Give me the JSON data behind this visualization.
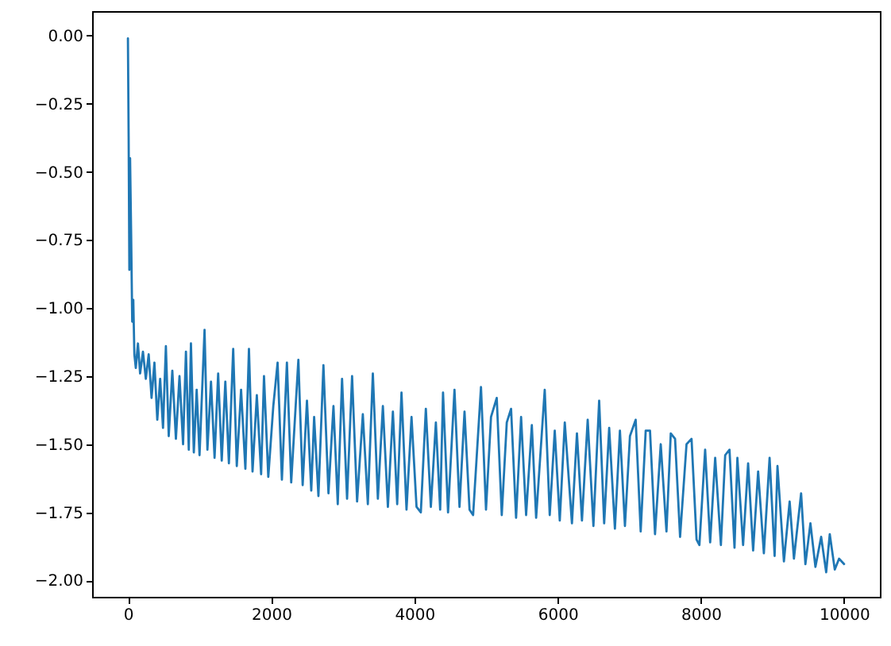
{
  "chart_data": {
    "type": "line",
    "color": "#1f77b4",
    "x": [
      0,
      10,
      20,
      30,
      45,
      60,
      75,
      90,
      110,
      140,
      170,
      210,
      250,
      290,
      330,
      370,
      410,
      450,
      490,
      530,
      570,
      620,
      670,
      720,
      770,
      810,
      850,
      880,
      920,
      960,
      1000,
      1070,
      1110,
      1160,
      1210,
      1260,
      1310,
      1360,
      1410,
      1470,
      1520,
      1580,
      1640,
      1690,
      1740,
      1800,
      1860,
      1900,
      1960,
      2030,
      2090,
      2150,
      2220,
      2280,
      2380,
      2440,
      2500,
      2560,
      2600,
      2660,
      2730,
      2800,
      2870,
      2930,
      2990,
      3060,
      3130,
      3200,
      3280,
      3350,
      3420,
      3490,
      3560,
      3630,
      3700,
      3760,
      3820,
      3890,
      3960,
      4030,
      4090,
      4160,
      4230,
      4300,
      4360,
      4400,
      4470,
      4560,
      4630,
      4700,
      4770,
      4820,
      4930,
      5000,
      5070,
      5150,
      5220,
      5290,
      5350,
      5420,
      5490,
      5560,
      5640,
      5700,
      5820,
      5890,
      5960,
      6030,
      6100,
      6200,
      6270,
      6340,
      6420,
      6500,
      6580,
      6650,
      6720,
      6800,
      6870,
      6940,
      7010,
      7090,
      7160,
      7230,
      7290,
      7360,
      7440,
      7520,
      7580,
      7640,
      7710,
      7800,
      7870,
      7940,
      7980,
      8060,
      8130,
      8200,
      8280,
      8340,
      8400,
      8470,
      8510,
      8590,
      8660,
      8730,
      8800,
      8880,
      8960,
      9030,
      9070,
      9160,
      9240,
      9300,
      9400,
      9460,
      9530,
      9600,
      9680,
      9750,
      9800,
      9870,
      9930,
      10000
    ],
    "values": [
      -0.01,
      -0.37,
      -0.86,
      -0.45,
      -0.73,
      -1.05,
      -0.97,
      -1.17,
      -1.22,
      -1.13,
      -1.24,
      -1.16,
      -1.26,
      -1.17,
      -1.33,
      -1.2,
      -1.41,
      -1.26,
      -1.44,
      -1.14,
      -1.47,
      -1.23,
      -1.48,
      -1.25,
      -1.5,
      -1.16,
      -1.52,
      -1.13,
      -1.53,
      -1.3,
      -1.54,
      -1.08,
      -1.52,
      -1.27,
      -1.55,
      -1.24,
      -1.56,
      -1.27,
      -1.57,
      -1.15,
      -1.58,
      -1.3,
      -1.59,
      -1.15,
      -1.6,
      -1.32,
      -1.61,
      -1.25,
      -1.62,
      -1.36,
      -1.2,
      -1.63,
      -1.2,
      -1.64,
      -1.19,
      -1.65,
      -1.34,
      -1.67,
      -1.4,
      -1.69,
      -1.21,
      -1.68,
      -1.36,
      -1.72,
      -1.26,
      -1.7,
      -1.25,
      -1.71,
      -1.39,
      -1.72,
      -1.24,
      -1.7,
      -1.36,
      -1.73,
      -1.38,
      -1.72,
      -1.31,
      -1.74,
      -1.4,
      -1.73,
      -1.75,
      -1.37,
      -1.73,
      -1.42,
      -1.74,
      -1.31,
      -1.75,
      -1.3,
      -1.73,
      -1.38,
      -1.74,
      -1.76,
      -1.29,
      -1.74,
      -1.4,
      -1.33,
      -1.76,
      -1.42,
      -1.37,
      -1.77,
      -1.4,
      -1.76,
      -1.43,
      -1.77,
      -1.3,
      -1.76,
      -1.45,
      -1.78,
      -1.42,
      -1.79,
      -1.46,
      -1.78,
      -1.41,
      -1.8,
      -1.34,
      -1.79,
      -1.44,
      -1.81,
      -1.45,
      -1.8,
      -1.47,
      -1.41,
      -1.82,
      -1.45,
      -1.45,
      -1.83,
      -1.5,
      -1.82,
      -1.46,
      -1.48,
      -1.84,
      -1.5,
      -1.48,
      -1.85,
      -1.87,
      -1.52,
      -1.86,
      -1.55,
      -1.87,
      -1.54,
      -1.52,
      -1.88,
      -1.55,
      -1.87,
      -1.57,
      -1.89,
      -1.6,
      -1.9,
      -1.55,
      -1.91,
      -1.58,
      -1.93,
      -1.71,
      -1.92,
      -1.68,
      -1.94,
      -1.79,
      -1.95,
      -1.84,
      -1.97,
      -1.83,
      -1.96,
      -1.92,
      -1.94
    ],
    "xlim": [
      -500,
      10500
    ],
    "ylim": [
      -2.06,
      0.09
    ],
    "xticks": [
      0,
      2000,
      4000,
      6000,
      8000,
      10000
    ],
    "yticks": [
      {
        "value": 0,
        "label": "0.00"
      },
      {
        "value": -0.25,
        "label": "−0.25"
      },
      {
        "value": -0.5,
        "label": "−0.50"
      },
      {
        "value": -0.75,
        "label": "−0.75"
      },
      {
        "value": -1,
        "label": "−1.00"
      },
      {
        "value": -1.25,
        "label": "−1.25"
      },
      {
        "value": -1.5,
        "label": "−1.50"
      },
      {
        "value": -1.75,
        "label": "−1.75"
      },
      {
        "value": -2,
        "label": "−2.00"
      }
    ]
  }
}
